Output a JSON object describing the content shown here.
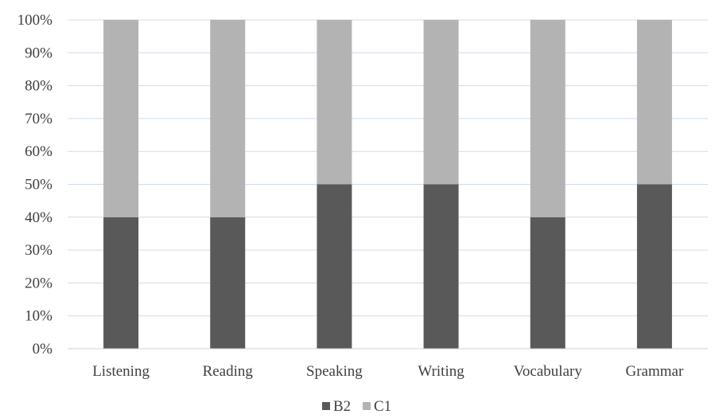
{
  "chart_data": {
    "type": "bar",
    "stacked": true,
    "percent_stacked": true,
    "categories": [
      "Listening",
      "Reading",
      "Speaking",
      "Writing",
      "Vocabulary",
      "Grammar"
    ],
    "series": [
      {
        "name": "B2",
        "values": [
          40,
          40,
          50,
          50,
          40,
          50
        ],
        "color": "#595959"
      },
      {
        "name": "C1",
        "values": [
          60,
          60,
          50,
          50,
          60,
          50
        ],
        "color": "#b3b3b3"
      }
    ],
    "yticks": [
      "0%",
      "10%",
      "20%",
      "30%",
      "40%",
      "50%",
      "60%",
      "70%",
      "80%",
      "90%",
      "100%"
    ],
    "ylim": [
      0,
      100
    ],
    "grid": true,
    "gridline_color": "#cfdcec",
    "legend_position": "bottom"
  }
}
